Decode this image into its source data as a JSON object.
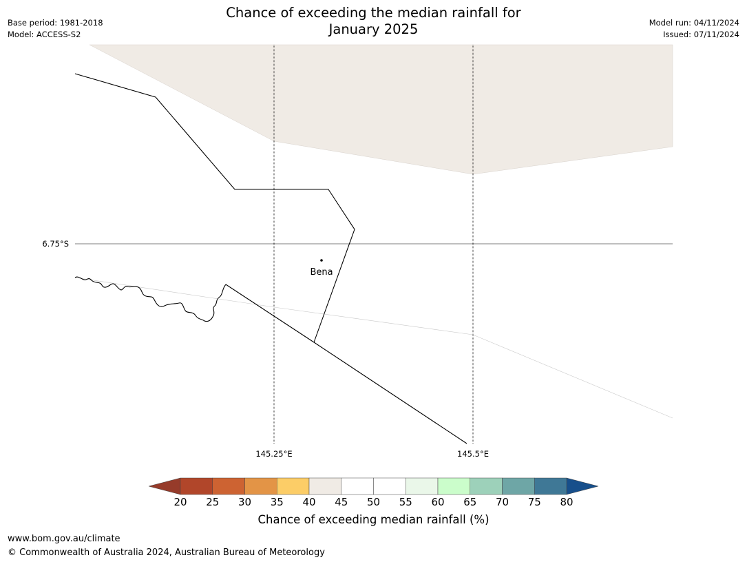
{
  "header": {
    "title_line1": "Chance of exceeding the median rainfall for",
    "title_line2": "January 2025",
    "base_period": "Base period: 1981-2018",
    "model": "Model: ACCESS-S2",
    "model_run": "Model run: 04/11/2024",
    "issued": "Issued: 07/11/2024"
  },
  "map": {
    "lat_label": "6.75°S",
    "lon_labels": [
      "145.25°E",
      "145.5°E"
    ],
    "place": {
      "name": "Bena"
    },
    "region_fill_color": "#f0ebe5",
    "boundary_color": "#000000",
    "category": "40-45"
  },
  "colorbar": {
    "title": "Chance of exceeding median rainfall (%)",
    "ticks": [
      "20",
      "25",
      "30",
      "35",
      "40",
      "45",
      "50",
      "55",
      "60",
      "65",
      "70",
      "75",
      "80"
    ],
    "colors": [
      "#b1462a",
      "#cd6332",
      "#e39446",
      "#fccd67",
      "#f0ebe5",
      "#ffffff",
      "#ffffff",
      "#eaf7e9",
      "#cbfdcb",
      "#9dd1ba",
      "#6ea6a6",
      "#3f7896"
    ],
    "under_color": "#963b2a",
    "over_color": "#174f8b"
  },
  "footer": {
    "url": "www.bom.gov.au/climate",
    "copyright": "© Commonwealth of Australia 2024, Australian Bureau of Meteorology"
  }
}
